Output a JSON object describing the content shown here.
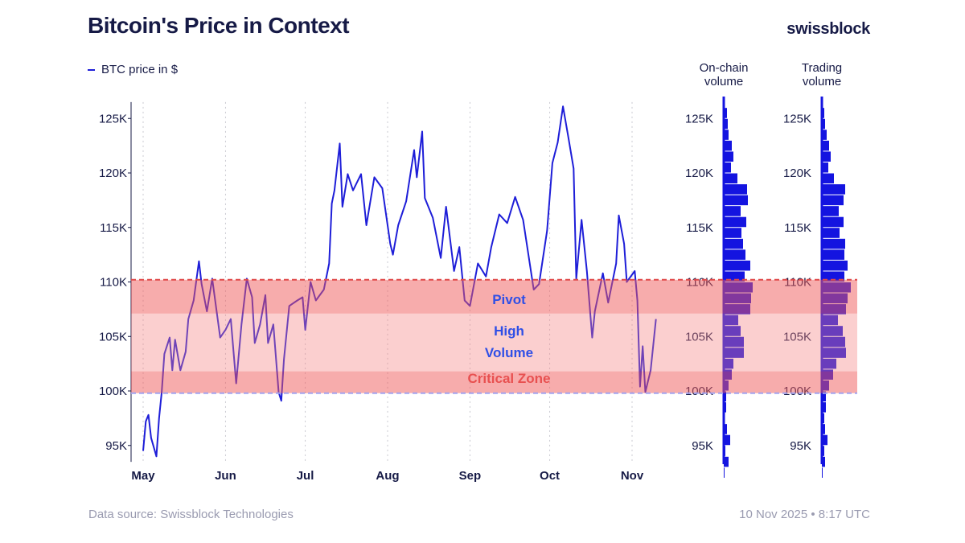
{
  "header": {
    "title": "Bitcoin's Price in Context",
    "logo": "swissblock"
  },
  "footer": {
    "source": "Data source: Swissblock Technologies",
    "timestamp": "10 Nov 2025 • 8:17 UTC"
  },
  "colors": {
    "line": "#1e1ed8",
    "volume": "#1414e0",
    "band_dark": "rgba(240,90,90,0.5)",
    "band_light": "rgba(245,130,130,0.38)",
    "pivot_line": "#e04848",
    "support_line": "#a3a3ee",
    "label_blue": "#2f4fe6",
    "label_red": "#e85050",
    "text": "#161a46"
  },
  "chart_data": [
    {
      "type": "line",
      "title": "Bitcoin's Price in Context",
      "legend": "BTC price in $",
      "legend_position": "top-left",
      "ylim": [
        93.5,
        126.5
      ],
      "yticks": [
        95,
        100,
        105,
        110,
        115,
        120,
        125
      ],
      "ytick_labels": [
        "95K",
        "100K",
        "105K",
        "110K",
        "115K",
        "120K",
        "125K"
      ],
      "xticks": [
        "2025-05-01",
        "2025-06-01",
        "2025-07-01",
        "2025-08-01",
        "2025-09-01",
        "2025-10-01",
        "2025-11-01"
      ],
      "xtick_labels": [
        "May",
        "Jun",
        "Jul",
        "Aug",
        "Sep",
        "Oct",
        "Nov"
      ],
      "grid": "vertical dotted at month starts",
      "zones": [
        {
          "label": "Pivot",
          "from": 107.1,
          "to": 110.2,
          "color": "dark"
        },
        {
          "label": "High Volume",
          "from": 101.8,
          "to": 107.1,
          "color": "light"
        },
        {
          "label": "Critical Zone",
          "from": 99.8,
          "to": 101.8,
          "color": "dark"
        }
      ],
      "series": [
        {
          "points": [
            [
              "2025-05-01",
              94.5
            ],
            [
              "2025-05-02",
              97.2
            ],
            [
              "2025-05-03",
              97.8
            ],
            [
              "2025-05-04",
              95.7
            ],
            [
              "2025-05-06",
              94.0
            ],
            [
              "2025-05-07",
              97.5
            ],
            [
              "2025-05-08",
              99.9
            ],
            [
              "2025-05-09",
              103.4
            ],
            [
              "2025-05-11",
              104.9
            ],
            [
              "2025-05-12",
              101.9
            ],
            [
              "2025-05-13",
              104.7
            ],
            [
              "2025-05-15",
              101.9
            ],
            [
              "2025-05-17",
              103.6
            ],
            [
              "2025-05-18",
              106.6
            ],
            [
              "2025-05-20",
              108.3
            ],
            [
              "2025-05-22",
              111.9
            ],
            [
              "2025-05-23",
              109.8
            ],
            [
              "2025-05-25",
              107.3
            ],
            [
              "2025-05-27",
              110.3
            ],
            [
              "2025-05-30",
              104.9
            ],
            [
              "2025-06-01",
              105.6
            ],
            [
              "2025-06-03",
              106.6
            ],
            [
              "2025-06-05",
              100.7
            ],
            [
              "2025-06-07",
              106.1
            ],
            [
              "2025-06-09",
              110.3
            ],
            [
              "2025-06-11",
              108.6
            ],
            [
              "2025-06-12",
              104.4
            ],
            [
              "2025-06-14",
              106.1
            ],
            [
              "2025-06-16",
              108.8
            ],
            [
              "2025-06-17",
              104.4
            ],
            [
              "2025-06-19",
              106.1
            ],
            [
              "2025-06-21",
              99.9
            ],
            [
              "2025-06-22",
              99.1
            ],
            [
              "2025-06-23",
              102.9
            ],
            [
              "2025-06-25",
              107.8
            ],
            [
              "2025-06-28",
              108.3
            ],
            [
              "2025-06-30",
              108.6
            ],
            [
              "2025-07-01",
              105.6
            ],
            [
              "2025-07-03",
              110.0
            ],
            [
              "2025-07-05",
              108.3
            ],
            [
              "2025-07-08",
              109.3
            ],
            [
              "2025-07-10",
              111.7
            ],
            [
              "2025-07-11",
              117.2
            ],
            [
              "2025-07-12",
              118.4
            ],
            [
              "2025-07-14",
              122.7
            ],
            [
              "2025-07-15",
              116.9
            ],
            [
              "2025-07-17",
              119.9
            ],
            [
              "2025-07-19",
              118.4
            ],
            [
              "2025-07-22",
              119.9
            ],
            [
              "2025-07-24",
              115.2
            ],
            [
              "2025-07-27",
              119.6
            ],
            [
              "2025-07-30",
              118.6
            ],
            [
              "2025-08-02",
              113.5
            ],
            [
              "2025-08-03",
              112.5
            ],
            [
              "2025-08-05",
              115.2
            ],
            [
              "2025-08-08",
              117.4
            ],
            [
              "2025-08-11",
              122.1
            ],
            [
              "2025-08-12",
              119.6
            ],
            [
              "2025-08-14",
              123.8
            ],
            [
              "2025-08-15",
              117.7
            ],
            [
              "2025-08-18",
              115.9
            ],
            [
              "2025-08-21",
              112.2
            ],
            [
              "2025-08-23",
              116.9
            ],
            [
              "2025-08-26",
              111.0
            ],
            [
              "2025-08-28",
              113.2
            ],
            [
              "2025-08-30",
              108.3
            ],
            [
              "2025-09-01",
              107.8
            ],
            [
              "2025-09-04",
              111.7
            ],
            [
              "2025-09-07",
              110.5
            ],
            [
              "2025-09-09",
              113.2
            ],
            [
              "2025-09-12",
              116.2
            ],
            [
              "2025-09-15",
              115.4
            ],
            [
              "2025-09-18",
              117.8
            ],
            [
              "2025-09-21",
              115.7
            ],
            [
              "2025-09-23",
              112.5
            ],
            [
              "2025-09-25",
              109.3
            ],
            [
              "2025-09-27",
              109.8
            ],
            [
              "2025-09-30",
              114.7
            ],
            [
              "2025-10-02",
              120.9
            ],
            [
              "2025-10-04",
              122.8
            ],
            [
              "2025-10-06",
              126.1
            ],
            [
              "2025-10-08",
              123.3
            ],
            [
              "2025-10-10",
              120.4
            ],
            [
              "2025-10-11",
              110.3
            ],
            [
              "2025-10-13",
              115.7
            ],
            [
              "2025-10-15",
              111.0
            ],
            [
              "2025-10-17",
              104.9
            ],
            [
              "2025-10-18",
              107.3
            ],
            [
              "2025-10-21",
              110.8
            ],
            [
              "2025-10-23",
              108.1
            ],
            [
              "2025-10-26",
              111.7
            ],
            [
              "2025-10-27",
              116.1
            ],
            [
              "2025-10-29",
              113.5
            ],
            [
              "2025-10-30",
              110.0
            ],
            [
              "2025-11-02",
              111.0
            ],
            [
              "2025-11-03",
              108.3
            ],
            [
              "2025-11-04",
              100.4
            ],
            [
              "2025-11-05",
              104.1
            ],
            [
              "2025-11-06",
              99.9
            ],
            [
              "2025-11-08",
              101.9
            ],
            [
              "2025-11-10",
              106.6
            ]
          ]
        }
      ]
    },
    {
      "type": "bar",
      "orientation": "horizontal",
      "title": "On-chain volume",
      "bin_size": 1,
      "bins_from": 126,
      "values": [
        4,
        5,
        6,
        10,
        12,
        9,
        17,
        29,
        30,
        21,
        28,
        22,
        24,
        27,
        33,
        26,
        36,
        34,
        33,
        18,
        21,
        25,
        25,
        12,
        10,
        6,
        3,
        3,
        1,
        4,
        8,
        2,
        6,
        1
      ],
      "ytick_labels": [
        "95K",
        "100K",
        "105K",
        "110K",
        "115K",
        "120K",
        "125K"
      ]
    },
    {
      "type": "bar",
      "orientation": "horizontal",
      "title": "Trading volume",
      "bin_size": 1,
      "bins_from": 126,
      "values": [
        3,
        4,
        6,
        9,
        11,
        8,
        15,
        29,
        27,
        21,
        27,
        22,
        29,
        28,
        32,
        28,
        36,
        32,
        30,
        20,
        26,
        29,
        30,
        18,
        14,
        9,
        5,
        5,
        3,
        4,
        7,
        3,
        4,
        1
      ],
      "ytick_labels": [
        "95K",
        "100K",
        "105K",
        "110K",
        "115K",
        "120K",
        "125K"
      ]
    }
  ]
}
